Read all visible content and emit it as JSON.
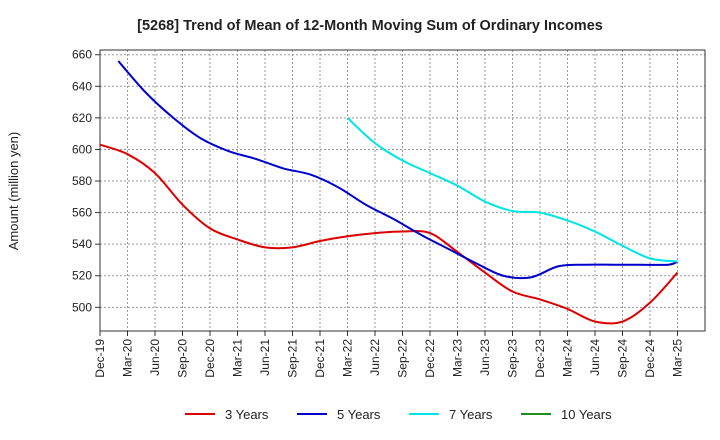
{
  "chart_data": {
    "type": "line",
    "title": "[5268]  Trend of Mean of 12-Month Moving Sum of Ordinary Incomes",
    "xlabel": "",
    "ylabel": "Amount (million yen)",
    "ylim": [
      485,
      663
    ],
    "yticks": [
      500,
      520,
      540,
      560,
      580,
      600,
      620,
      640,
      660
    ],
    "xlim": [
      0,
      66
    ],
    "x_tick_labels": [
      "Dec-19",
      "Mar-20",
      "Jun-20",
      "Sep-20",
      "Dec-20",
      "Mar-21",
      "Jun-21",
      "Sep-21",
      "Dec-21",
      "Mar-22",
      "Jun-22",
      "Sep-22",
      "Dec-22",
      "Mar-23",
      "Jun-23",
      "Sep-23",
      "Dec-23",
      "Mar-24",
      "Jun-24",
      "Sep-24",
      "Dec-24",
      "Mar-25"
    ],
    "grid": true,
    "legend_position": "bottom",
    "series": [
      {
        "name": "3 Years",
        "color": "#dd0000",
        "x": [
          0,
          3,
          6,
          9,
          12,
          15,
          18,
          21,
          24,
          27,
          30,
          33,
          36,
          39,
          42,
          45,
          48,
          51,
          54,
          57,
          60,
          63
        ],
        "values": [
          603,
          597,
          585,
          565,
          550,
          543,
          538,
          538,
          542,
          545,
          547,
          548,
          547,
          535,
          522,
          510,
          505,
          499,
          491,
          491,
          503,
          522
        ]
      },
      {
        "name": "5 Years",
        "color": "#0000cc",
        "x": [
          2,
          5,
          8,
          11,
          14,
          17,
          20,
          23,
          26,
          29,
          32,
          35,
          38,
          41,
          44,
          47,
          50,
          53,
          56,
          59,
          62,
          63
        ],
        "values": [
          656,
          636,
          620,
          607,
          599,
          594,
          588,
          584,
          576,
          565,
          556,
          546,
          537,
          528,
          520,
          519,
          526,
          527,
          527,
          527,
          527,
          529
        ]
      },
      {
        "name": "7 Years",
        "color": "#00e5e5",
        "x": [
          27,
          30,
          33,
          36,
          39,
          42,
          45,
          48,
          51,
          54,
          57,
          60,
          63
        ],
        "values": [
          620,
          604,
          593,
          585,
          577,
          567,
          561,
          560,
          555,
          548,
          539,
          531,
          529
        ]
      },
      {
        "name": "10 Years",
        "color": "#228b22",
        "x": [],
        "values": []
      }
    ]
  }
}
